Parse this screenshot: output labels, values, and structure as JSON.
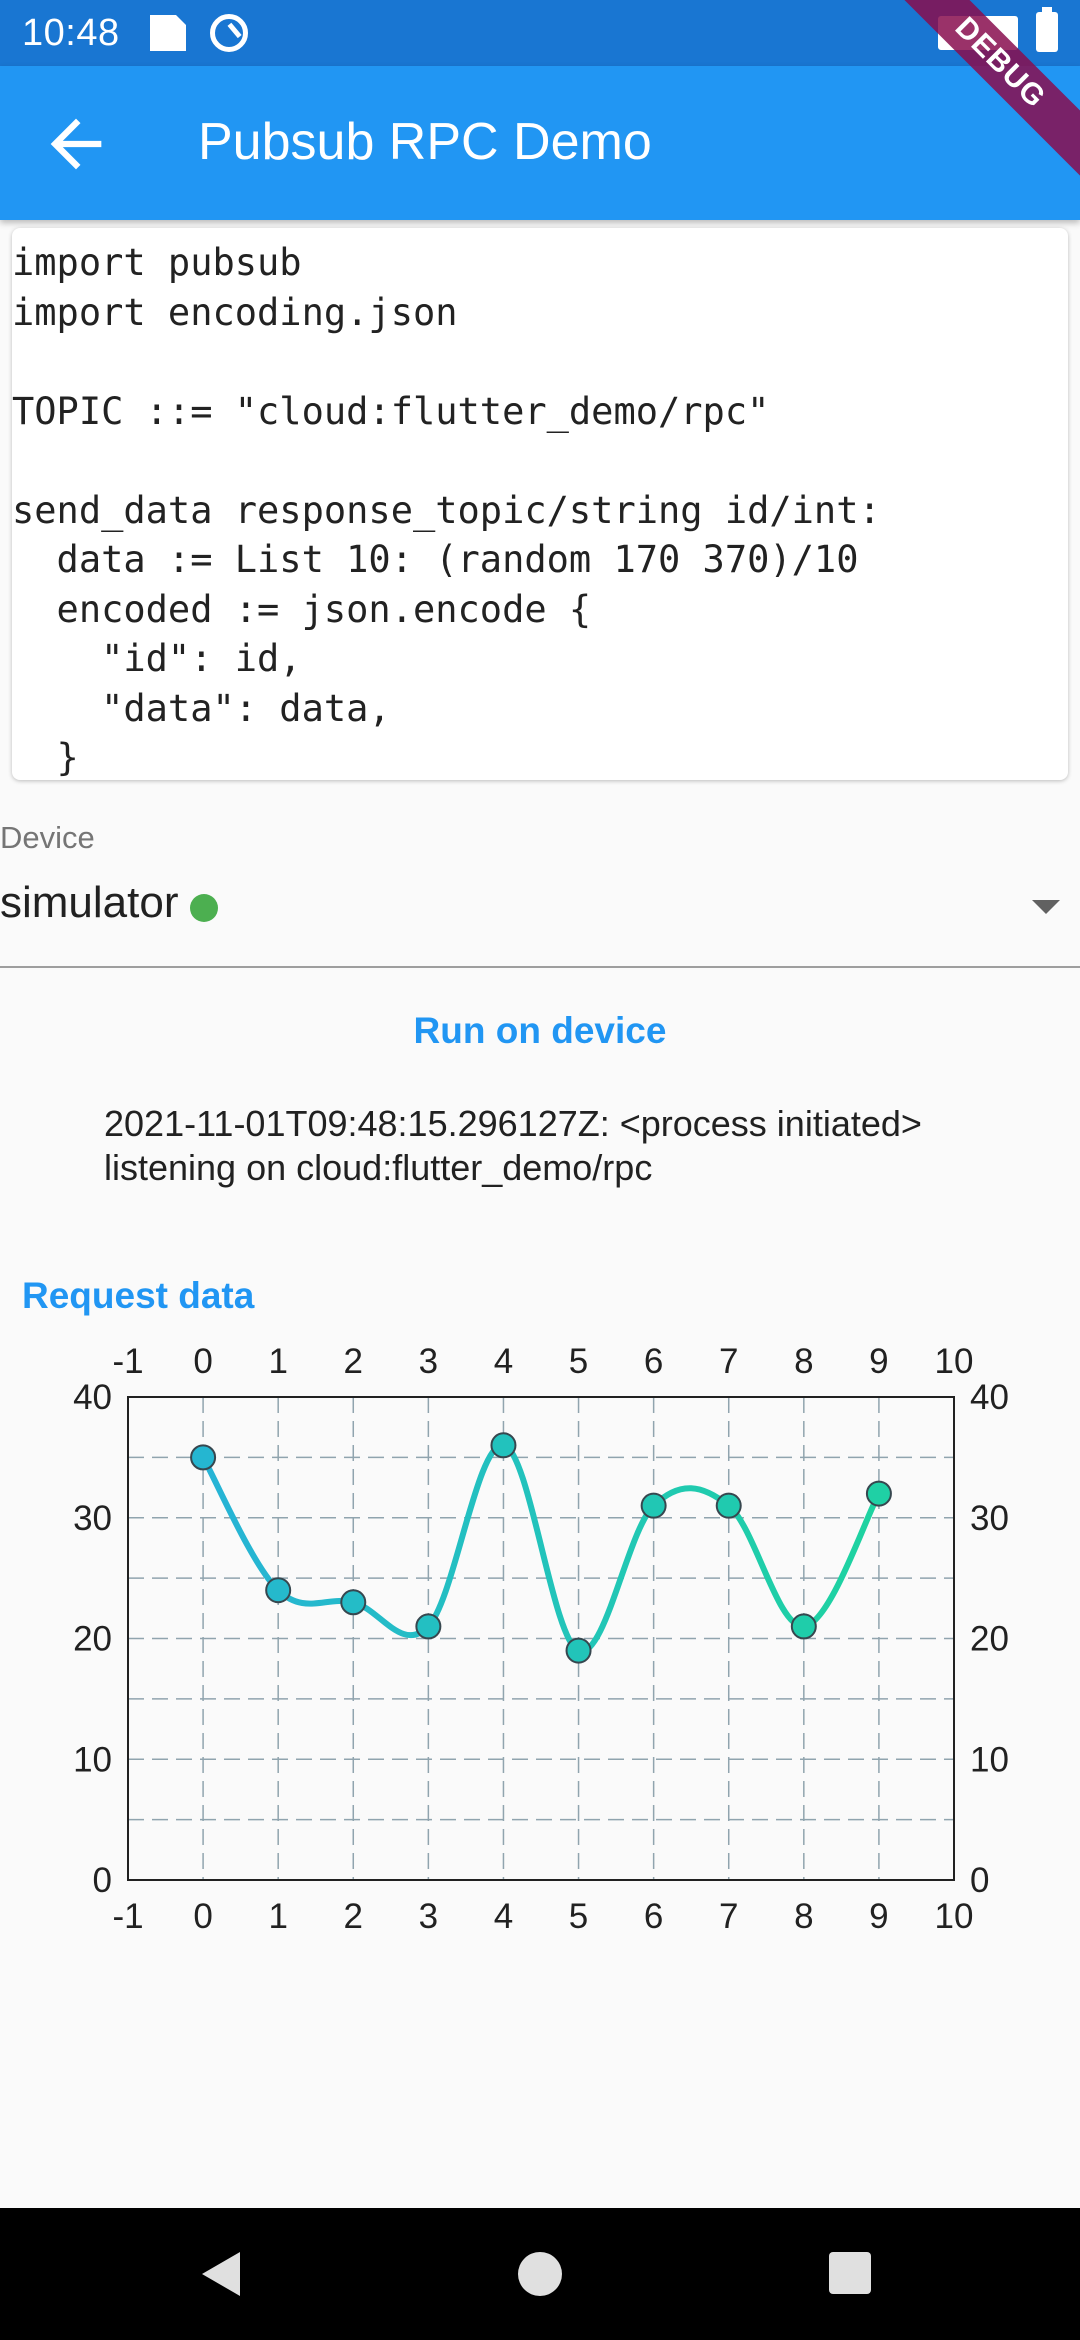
{
  "status_bar": {
    "time": "10:48"
  },
  "app_bar": {
    "title": "Pubsub RPC Demo",
    "debug_label": "DEBUG"
  },
  "code": {
    "lines": [
      "import pubsub",
      "import encoding.json",
      "",
      "TOPIC ::= \"cloud:flutter_demo/rpc\"",
      "",
      "send_data response_topic/string id/int:",
      "  data := List 10: (random 170 370)/10",
      "  encoded := json.encode {",
      "    \"id\": id,",
      "    \"data\": data,",
      "  }"
    ]
  },
  "device": {
    "label": "Device",
    "value": "simulator",
    "status_color": "#4caf50"
  },
  "run_button_label": "Run on device",
  "log": {
    "lines": [
      "2021-11-01T09:48:15.296127Z: <process initiated>",
      "listening on cloud:flutter_demo/rpc"
    ]
  },
  "request_button_label": "Request data",
  "chart_data": {
    "type": "line",
    "x": [
      0,
      1,
      2,
      3,
      4,
      5,
      6,
      7,
      8,
      9
    ],
    "values": [
      35,
      24,
      23,
      21,
      36,
      19,
      31,
      31,
      21,
      32
    ],
    "xlim": [
      -1,
      10
    ],
    "ylim": [
      0,
      40
    ],
    "x_ticks": [
      -1,
      0,
      1,
      2,
      3,
      4,
      5,
      6,
      7,
      8,
      9,
      10
    ],
    "y_ticks": [
      0,
      10,
      20,
      30,
      40
    ],
    "grid": true,
    "smooth": true,
    "line_color_start": "#26b3d6",
    "line_color_end": "#1ed3a0",
    "title": "",
    "xlabel": "",
    "ylabel": ""
  },
  "colors": {
    "status_bar": "#1976d2",
    "app_bar": "#2196f3",
    "accent": "#2196f3"
  }
}
